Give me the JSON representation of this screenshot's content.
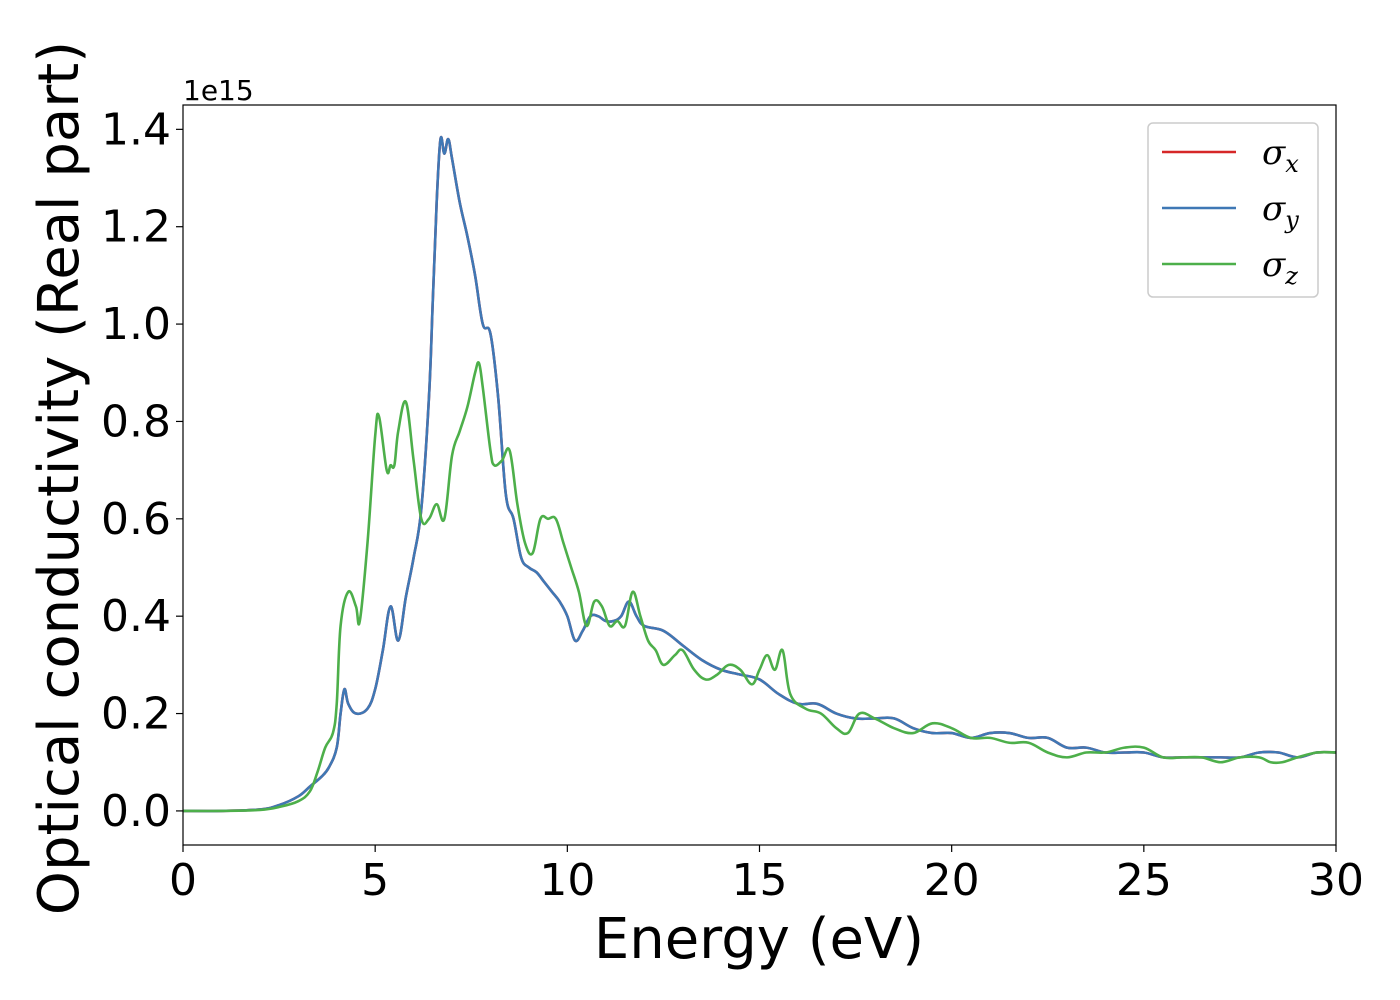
{
  "chart_data": {
    "type": "line",
    "xlabel": "Energy (eV)",
    "ylabel": "Optical conductivity (Real part)",
    "y_offset_label": "1e15",
    "xlim": [
      0,
      30
    ],
    "ylim": [
      -0.07,
      1.45
    ],
    "x_ticks": [
      0,
      5,
      10,
      15,
      20,
      25,
      30
    ],
    "x_tick_labels": [
      "0",
      "5",
      "10",
      "15",
      "20",
      "25",
      "30"
    ],
    "y_ticks": [
      0.0,
      0.2,
      0.4,
      0.6,
      0.8,
      1.0,
      1.2,
      1.4
    ],
    "y_tick_labels": [
      "0.0",
      "0.2",
      "0.4",
      "0.6",
      "0.8",
      "1.0",
      "1.2",
      "1.4"
    ],
    "grid": false,
    "legend_position": "top-right",
    "series": [
      {
        "name": "σx",
        "symbol": "σ",
        "subscript": "x",
        "color": "#d62728",
        "x": [
          0,
          1,
          2,
          2.5,
          3,
          3.3,
          3.6,
          3.8,
          4.0,
          4.1,
          4.2,
          4.3,
          4.5,
          4.8,
          5.0,
          5.2,
          5.4,
          5.6,
          5.8,
          6.0,
          6.2,
          6.4,
          6.5,
          6.6,
          6.7,
          6.8,
          6.9,
          7.0,
          7.2,
          7.4,
          7.6,
          7.8,
          8.0,
          8.2,
          8.4,
          8.6,
          8.8,
          9.0,
          9.2,
          9.4,
          9.6,
          9.8,
          10.0,
          10.2,
          10.4,
          10.6,
          10.8,
          11.0,
          11.2,
          11.4,
          11.6,
          11.8,
          12.0,
          12.5,
          13.0,
          13.5,
          14.0,
          14.5,
          15.0,
          15.5,
          16.0,
          16.5,
          17.0,
          17.5,
          18.0,
          18.5,
          19.0,
          19.5,
          20.0,
          20.5,
          21.0,
          21.5,
          22.0,
          22.5,
          23.0,
          23.5,
          24.0,
          24.5,
          25.0,
          25.5,
          26.0,
          26.5,
          27.0,
          27.5,
          28.0,
          28.5,
          29.0,
          29.5,
          30.0
        ],
        "y": [
          0,
          0,
          0.003,
          0.012,
          0.03,
          0.05,
          0.07,
          0.09,
          0.13,
          0.2,
          0.25,
          0.22,
          0.2,
          0.21,
          0.25,
          0.33,
          0.42,
          0.35,
          0.44,
          0.52,
          0.62,
          0.85,
          1.05,
          1.25,
          1.38,
          1.35,
          1.38,
          1.34,
          1.25,
          1.18,
          1.1,
          1.0,
          0.98,
          0.85,
          0.65,
          0.6,
          0.52,
          0.5,
          0.49,
          0.47,
          0.45,
          0.43,
          0.4,
          0.35,
          0.37,
          0.4,
          0.4,
          0.39,
          0.39,
          0.4,
          0.43,
          0.4,
          0.38,
          0.37,
          0.34,
          0.31,
          0.29,
          0.28,
          0.27,
          0.24,
          0.22,
          0.22,
          0.2,
          0.19,
          0.19,
          0.19,
          0.17,
          0.16,
          0.16,
          0.15,
          0.16,
          0.16,
          0.15,
          0.15,
          0.13,
          0.13,
          0.12,
          0.12,
          0.12,
          0.11,
          0.11,
          0.11,
          0.11,
          0.11,
          0.12,
          0.12,
          0.11,
          0.12,
          0.12
        ]
      },
      {
        "name": "σy",
        "symbol": "σ",
        "subscript": "y",
        "color": "#3f78b5",
        "x": [
          0,
          1,
          2,
          2.5,
          3,
          3.3,
          3.6,
          3.8,
          4.0,
          4.1,
          4.2,
          4.3,
          4.5,
          4.8,
          5.0,
          5.2,
          5.4,
          5.6,
          5.8,
          6.0,
          6.2,
          6.4,
          6.5,
          6.6,
          6.7,
          6.8,
          6.9,
          7.0,
          7.2,
          7.4,
          7.6,
          7.8,
          8.0,
          8.2,
          8.4,
          8.6,
          8.8,
          9.0,
          9.2,
          9.4,
          9.6,
          9.8,
          10.0,
          10.2,
          10.4,
          10.6,
          10.8,
          11.0,
          11.2,
          11.4,
          11.6,
          11.8,
          12.0,
          12.5,
          13.0,
          13.5,
          14.0,
          14.5,
          15.0,
          15.5,
          16.0,
          16.5,
          17.0,
          17.5,
          18.0,
          18.5,
          19.0,
          19.5,
          20.0,
          20.5,
          21.0,
          21.5,
          22.0,
          22.5,
          23.0,
          23.5,
          24.0,
          24.5,
          25.0,
          25.5,
          26.0,
          26.5,
          27.0,
          27.5,
          28.0,
          28.5,
          29.0,
          29.5,
          30.0
        ],
        "y": [
          0,
          0,
          0.003,
          0.012,
          0.03,
          0.05,
          0.07,
          0.09,
          0.13,
          0.2,
          0.25,
          0.22,
          0.2,
          0.21,
          0.25,
          0.33,
          0.42,
          0.35,
          0.44,
          0.52,
          0.62,
          0.85,
          1.05,
          1.25,
          1.38,
          1.35,
          1.38,
          1.34,
          1.25,
          1.18,
          1.1,
          1.0,
          0.98,
          0.85,
          0.65,
          0.6,
          0.52,
          0.5,
          0.49,
          0.47,
          0.45,
          0.43,
          0.4,
          0.35,
          0.37,
          0.4,
          0.4,
          0.39,
          0.39,
          0.4,
          0.43,
          0.4,
          0.38,
          0.37,
          0.34,
          0.31,
          0.29,
          0.28,
          0.27,
          0.24,
          0.22,
          0.22,
          0.2,
          0.19,
          0.19,
          0.19,
          0.17,
          0.16,
          0.16,
          0.15,
          0.16,
          0.16,
          0.15,
          0.15,
          0.13,
          0.13,
          0.12,
          0.12,
          0.12,
          0.11,
          0.11,
          0.11,
          0.11,
          0.11,
          0.12,
          0.12,
          0.11,
          0.12,
          0.12
        ]
      },
      {
        "name": "σz",
        "symbol": "σ",
        "subscript": "z",
        "color": "#4daf4a",
        "x": [
          0,
          1,
          2,
          2.5,
          3,
          3.3,
          3.5,
          3.7,
          3.9,
          4.0,
          4.1,
          4.3,
          4.5,
          4.6,
          4.8,
          5.0,
          5.1,
          5.3,
          5.4,
          5.5,
          5.6,
          5.8,
          6.0,
          6.2,
          6.4,
          6.6,
          6.8,
          7.0,
          7.2,
          7.4,
          7.6,
          7.7,
          7.8,
          8.0,
          8.1,
          8.3,
          8.5,
          8.7,
          8.9,
          9.1,
          9.3,
          9.5,
          9.7,
          9.9,
          10.1,
          10.3,
          10.5,
          10.7,
          10.9,
          11.1,
          11.3,
          11.5,
          11.7,
          11.9,
          12.1,
          12.3,
          12.5,
          12.8,
          13.0,
          13.3,
          13.6,
          13.9,
          14.2,
          14.5,
          14.8,
          15.0,
          15.2,
          15.4,
          15.6,
          15.8,
          16.2,
          16.6,
          17.0,
          17.3,
          17.6,
          18.0,
          18.5,
          19.0,
          19.5,
          20.0,
          20.5,
          21.0,
          21.5,
          22.0,
          22.5,
          23.0,
          23.5,
          24.0,
          24.5,
          25.0,
          25.5,
          26.0,
          26.5,
          27.0,
          27.5,
          28.0,
          28.3,
          28.6,
          29.0,
          29.5,
          30.0
        ],
        "y": [
          0,
          0,
          0.002,
          0.008,
          0.02,
          0.04,
          0.08,
          0.13,
          0.16,
          0.22,
          0.38,
          0.45,
          0.42,
          0.39,
          0.55,
          0.77,
          0.81,
          0.7,
          0.71,
          0.71,
          0.78,
          0.84,
          0.72,
          0.6,
          0.6,
          0.63,
          0.6,
          0.73,
          0.78,
          0.83,
          0.9,
          0.92,
          0.87,
          0.74,
          0.71,
          0.72,
          0.74,
          0.63,
          0.55,
          0.53,
          0.6,
          0.6,
          0.6,
          0.55,
          0.5,
          0.45,
          0.38,
          0.43,
          0.42,
          0.38,
          0.39,
          0.38,
          0.45,
          0.4,
          0.35,
          0.33,
          0.3,
          0.32,
          0.33,
          0.29,
          0.27,
          0.28,
          0.3,
          0.29,
          0.26,
          0.29,
          0.32,
          0.29,
          0.33,
          0.24,
          0.21,
          0.2,
          0.17,
          0.16,
          0.2,
          0.19,
          0.17,
          0.16,
          0.18,
          0.17,
          0.15,
          0.15,
          0.14,
          0.14,
          0.12,
          0.11,
          0.12,
          0.12,
          0.13,
          0.13,
          0.11,
          0.11,
          0.11,
          0.1,
          0.11,
          0.11,
          0.1,
          0.1,
          0.11,
          0.12,
          0.12
        ]
      }
    ]
  }
}
